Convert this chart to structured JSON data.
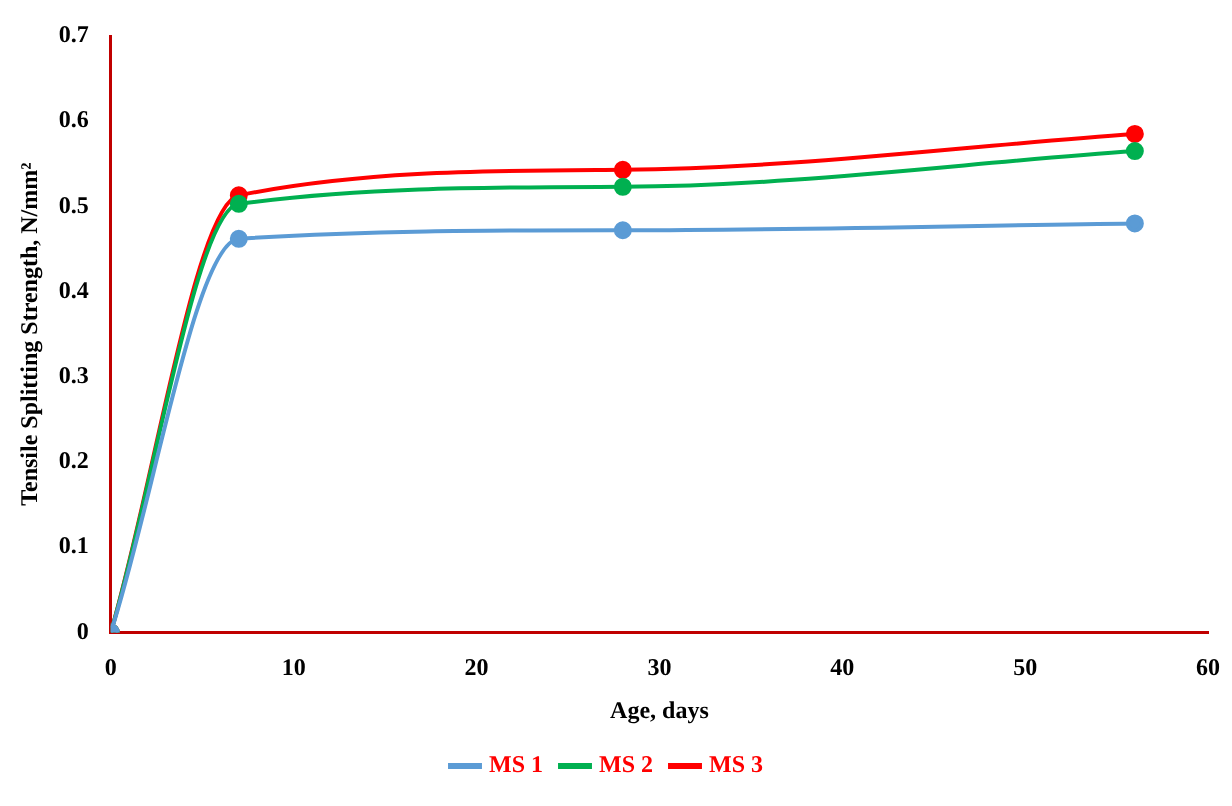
{
  "chart_data": {
    "type": "line",
    "xlabel": "Age, days",
    "ylabel": "Tensile Splitting Strength, N/mm²",
    "x": [
      0,
      7,
      28,
      56
    ],
    "series": [
      {
        "name": "MS 1",
        "color": "#5b9bd5",
        "values": [
          0,
          0.462,
          0.472,
          0.48
        ]
      },
      {
        "name": "MS 2",
        "color": "#00b050",
        "values": [
          0,
          0.503,
          0.523,
          0.565
        ]
      },
      {
        "name": "MS 3",
        "color": "#ff0000",
        "values": [
          0,
          0.513,
          0.543,
          0.585
        ]
      }
    ],
    "xlim": [
      0,
      60
    ],
    "xticks": [
      0,
      10,
      20,
      30,
      40,
      50,
      60
    ],
    "ylim": [
      0,
      0.7
    ],
    "yticks": [
      0,
      0.1,
      0.2,
      0.3,
      0.4,
      0.5,
      0.6,
      0.7
    ],
    "grid": false,
    "legend": "bottom",
    "marker": "circle",
    "line_style": "solid"
  }
}
